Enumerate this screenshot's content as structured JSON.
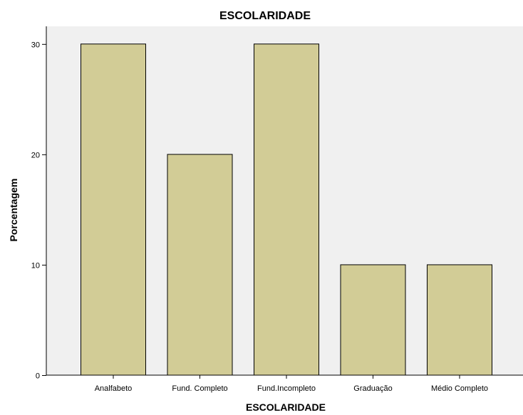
{
  "chart_data": {
    "type": "bar",
    "title": "ESCOLARIDADE",
    "xlabel": "ESCOLARIDADE",
    "ylabel": "Porcentagem",
    "categories": [
      "Analfabeto",
      "Fund. Completo",
      "Fund.Incompleto",
      "Graduação",
      "Médio Completo"
    ],
    "values": [
      30,
      20,
      30,
      10,
      10
    ],
    "yticks": [
      "0",
      "10",
      "20",
      "30"
    ],
    "ylim": [
      0,
      31.6
    ],
    "grid": false,
    "legend": "none",
    "colors": {
      "bar_fill": "#d2cc96",
      "bar_stroke": "#000000",
      "plot_background": "#f0f0f0"
    }
  }
}
